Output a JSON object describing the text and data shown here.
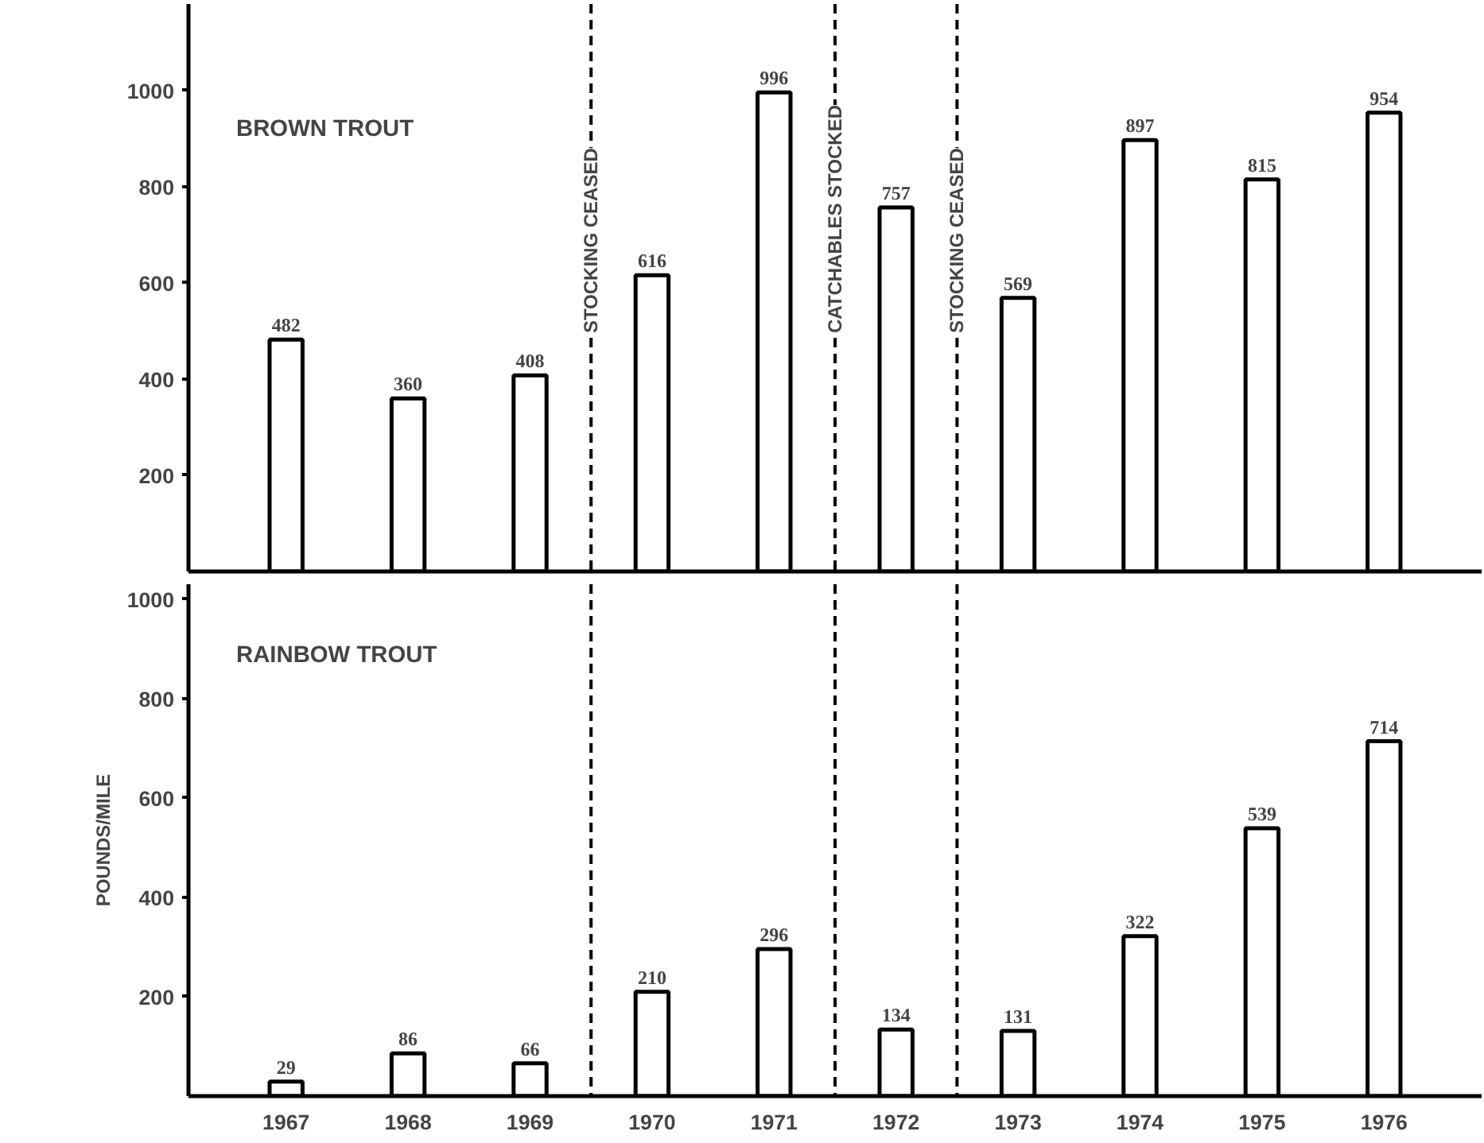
{
  "chart_data": [
    {
      "type": "bar",
      "title": "BROWN TROUT",
      "x": [
        1967,
        1968,
        1969,
        1970,
        1971,
        1972,
        1973,
        1974,
        1975,
        1976
      ],
      "values": [
        482,
        360,
        408,
        616,
        996,
        757,
        569,
        897,
        815,
        954
      ],
      "color": "#ffffff",
      "xlim": [
        1966.2,
        1976.8
      ],
      "xticks": [
        1967,
        1968,
        1969,
        1970,
        1971,
        1972,
        1973,
        1974,
        1975,
        1976
      ],
      "ylim": [
        0,
        1180
      ],
      "yticks": [
        200,
        400,
        600,
        800,
        1000
      ],
      "data_labels": true,
      "grid": false,
      "tick_labels": "y",
      "ref_lines": [
        {
          "axis": "x",
          "value": 1969.5,
          "label": "STOCKING CEASED",
          "line_style": "dashed"
        },
        {
          "axis": "x",
          "value": 1971.5,
          "label": "CATCHABLES STOCKED",
          "line_style": "dashed"
        },
        {
          "axis": "x",
          "value": 1972.5,
          "label": "STOCKING CEASED",
          "line_style": "dashed"
        }
      ]
    },
    {
      "type": "bar",
      "title": "RAINBOW TROUT",
      "ylabel": "POUNDS/MILE",
      "x": [
        1967,
        1968,
        1969,
        1970,
        1971,
        1972,
        1973,
        1974,
        1975,
        1976
      ],
      "values": [
        29,
        86,
        66,
        210,
        296,
        134,
        131,
        322,
        539,
        714
      ],
      "color": "#ffffff",
      "xlim": [
        1966.2,
        1976.8
      ],
      "xticks": [
        1967,
        1968,
        1969,
        1970,
        1971,
        1972,
        1973,
        1974,
        1975,
        1976
      ],
      "ylim": [
        0,
        1030
      ],
      "yticks": [
        200,
        400,
        600,
        800,
        1000
      ],
      "data_labels": true,
      "grid": false,
      "ref_lines": [
        {
          "axis": "x",
          "value": 1969.5,
          "line_style": "dashed"
        },
        {
          "axis": "x",
          "value": 1971.5,
          "line_style": "dashed"
        },
        {
          "axis": "x",
          "value": 1972.5,
          "line_style": "dashed"
        }
      ]
    }
  ]
}
